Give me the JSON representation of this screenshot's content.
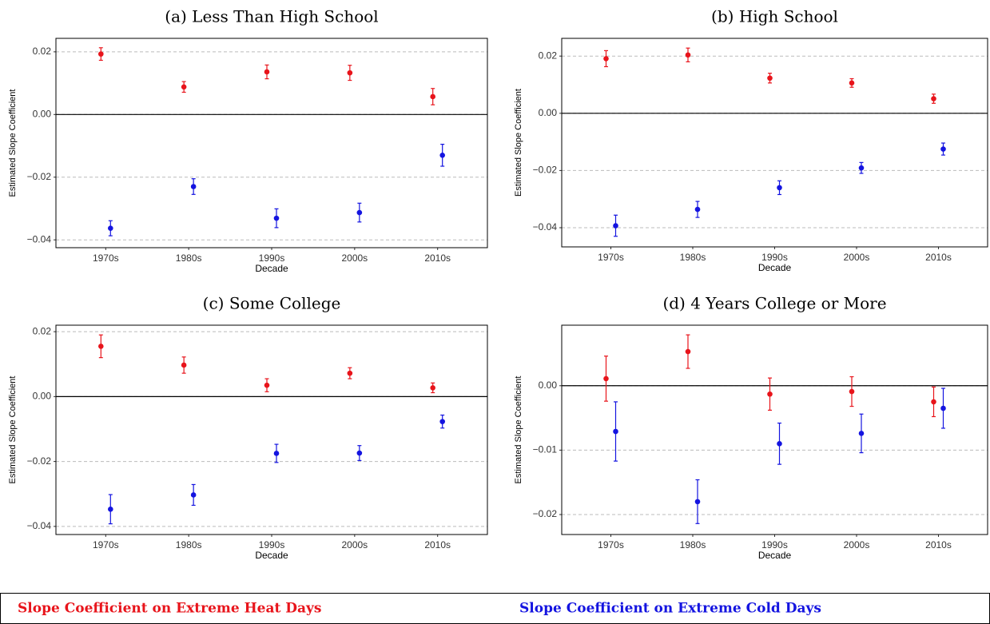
{
  "chart_data": [
    {
      "type": "errorbar",
      "title": "(a) Less Than High School",
      "x_label": "Decade",
      "y_label": "Estimated Slope Coefficient",
      "categories": [
        "1970s",
        "1980s",
        "1990s",
        "2000s",
        "2010s"
      ],
      "ylim": [
        -0.0425,
        0.0243
      ],
      "yticks": [
        {
          "value": 0.02,
          "label": "0.02"
        },
        {
          "value": 0,
          "label": "0.00"
        },
        {
          "value": -0.02,
          "label": "−0.02"
        },
        {
          "value": -0.04,
          "label": "−0.04"
        }
      ],
      "reference_line": 0,
      "grid": true,
      "series": [
        {
          "name": "Slope Coefficient on Extreme Heat Days",
          "color": "#e8141b",
          "values": [
            0.0193,
            0.0088,
            0.0136,
            0.0133,
            0.0057
          ],
          "errors": [
            0.002,
            0.0017,
            0.0022,
            0.0024,
            0.0026
          ]
        },
        {
          "name": "Slope Coefficient on Extreme Cold Days",
          "color": "#1414e0",
          "values": [
            -0.0363,
            -0.023,
            -0.0331,
            -0.0313,
            -0.013
          ],
          "errors": [
            0.0024,
            0.0025,
            0.003,
            0.003,
            0.0035
          ]
        }
      ]
    },
    {
      "type": "errorbar",
      "title": "(b) High School",
      "x_label": "Decade",
      "y_label": "Estimated Slope Coefficient",
      "categories": [
        "1970s",
        "1980s",
        "1990s",
        "2000s",
        "2010s"
      ],
      "ylim": [
        -0.0467,
        0.0262
      ],
      "yticks": [
        {
          "value": 0.02,
          "label": "0.02"
        },
        {
          "value": 0,
          "label": "0.00"
        },
        {
          "value": -0.02,
          "label": "−0.02"
        },
        {
          "value": -0.04,
          "label": "−0.04"
        }
      ],
      "reference_line": 0,
      "grid": true,
      "series": [
        {
          "name": "Slope Coefficient on Extreme Heat Days",
          "color": "#e8141b",
          "values": [
            0.0191,
            0.0204,
            0.0123,
            0.0106,
            0.0051
          ],
          "errors": [
            0.0028,
            0.0024,
            0.0017,
            0.0015,
            0.0016
          ]
        },
        {
          "name": "Slope Coefficient on Extreme Cold Days",
          "color": "#1414e0",
          "values": [
            -0.0393,
            -0.0336,
            -0.026,
            -0.0191,
            -0.0125
          ],
          "errors": [
            0.0037,
            0.0028,
            0.0024,
            0.0019,
            0.0021
          ]
        }
      ]
    },
    {
      "type": "errorbar",
      "title": "(c) Some College",
      "x_label": "Decade",
      "y_label": "Estimated Slope Coefficient",
      "categories": [
        "1970s",
        "1980s",
        "1990s",
        "2000s",
        "2010s"
      ],
      "ylim": [
        -0.0425,
        0.022
      ],
      "yticks": [
        {
          "value": 0.02,
          "label": "0.02"
        },
        {
          "value": 0,
          "label": "0.00"
        },
        {
          "value": -0.02,
          "label": "−0.02"
        },
        {
          "value": -0.04,
          "label": "−0.04"
        }
      ],
      "reference_line": 0,
      "grid": true,
      "series": [
        {
          "name": "Slope Coefficient on Extreme Heat Days",
          "color": "#e8141b",
          "values": [
            0.0155,
            0.0097,
            0.0035,
            0.0072,
            0.0027
          ],
          "errors": [
            0.0035,
            0.0025,
            0.002,
            0.0017,
            0.0015
          ]
        },
        {
          "name": "Slope Coefficient on Extreme Cold Days",
          "color": "#1414e0",
          "values": [
            -0.0347,
            -0.0303,
            -0.0175,
            -0.0174,
            -0.0077
          ],
          "errors": [
            0.0045,
            0.0032,
            0.0028,
            0.0023,
            0.002
          ]
        }
      ]
    },
    {
      "type": "errorbar",
      "title": "(d) 4 Years College or More",
      "x_label": "Decade",
      "y_label": "Estimated Slope Coefficient",
      "categories": [
        "1970s",
        "1980s",
        "1990s",
        "2000s",
        "2010s"
      ],
      "ylim": [
        -0.0231,
        0.0094
      ],
      "yticks": [
        {
          "value": 0,
          "label": "0.00"
        },
        {
          "value": -0.01,
          "label": "−0.01"
        },
        {
          "value": -0.02,
          "label": "−0.02"
        }
      ],
      "reference_line": 0,
      "grid": true,
      "series": [
        {
          "name": "Slope Coefficient on Extreme Heat Days",
          "color": "#e8141b",
          "values": [
            0.0011,
            0.0053,
            -0.0013,
            -0.0009,
            -0.0025
          ],
          "errors": [
            0.0035,
            0.0026,
            0.0025,
            0.0023,
            0.0023
          ]
        },
        {
          "name": "Slope Coefficient on Extreme Cold Days",
          "color": "#1414e0",
          "values": [
            -0.0071,
            -0.018,
            -0.009,
            -0.0074,
            -0.0035
          ],
          "errors": [
            0.0046,
            0.0034,
            0.0032,
            0.003,
            0.0031
          ]
        }
      ]
    }
  ]
}
